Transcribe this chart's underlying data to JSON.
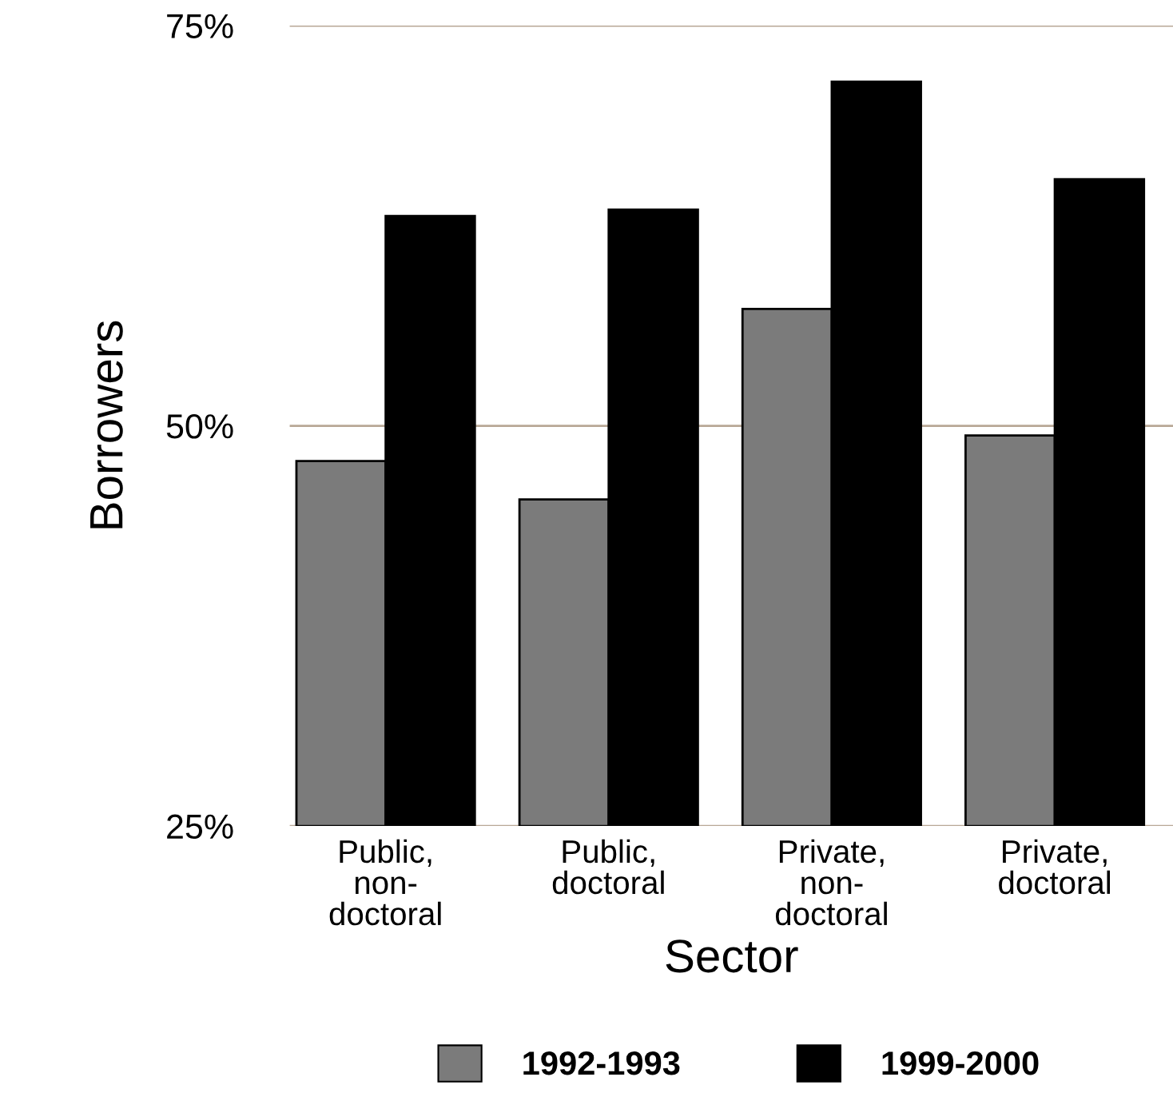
{
  "chart_data": {
    "type": "bar",
    "xlabel": "Sector",
    "ylabel": "Borrowers",
    "categories": [
      "Public,\nnon-\ndoctoral",
      "Public,\ndoctoral",
      "Private,\nnon-\ndoctoral",
      "Private,\ndoctoral"
    ],
    "series": [
      {
        "name": "1992-1993",
        "color": "#7b7b7b",
        "values": [
          47.8,
          45.4,
          57.3,
          49.4
        ]
      },
      {
        "name": "1999-2000",
        "color": "#000000",
        "values": [
          63.1,
          63.5,
          71.5,
          65.4
        ]
      }
    ],
    "ylim": [
      25,
      75
    ],
    "yticks": [
      {
        "value": 25,
        "label": "25%"
      },
      {
        "value": 50,
        "label": "50%"
      },
      {
        "value": 75,
        "label": "75%"
      }
    ],
    "grid": "y",
    "legend": "bottom"
  }
}
